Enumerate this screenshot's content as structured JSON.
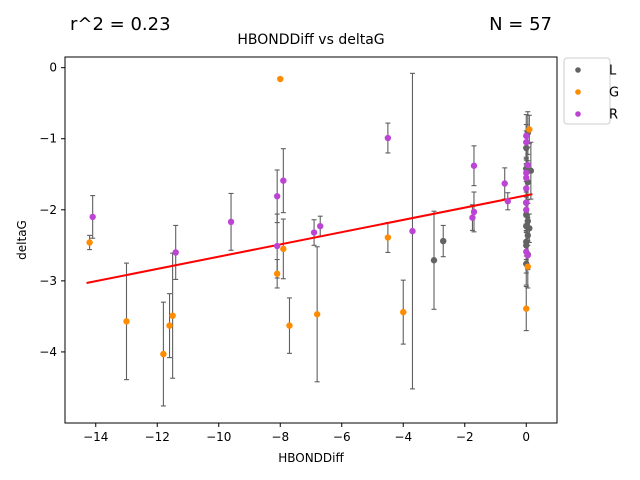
{
  "chart_data": {
    "type": "scatter",
    "title": "HBONDDiff vs deltaG",
    "xlabel": "HBONDDiff",
    "ylabel": "deltaG",
    "stat_left": "r^2 = 0.23",
    "stat_right": "N = 57",
    "xlim": [
      -15,
      1
    ],
    "ylim": [
      -5,
      0.15
    ],
    "xticks": [
      -14,
      -12,
      -10,
      -8,
      -6,
      -4,
      -2,
      0
    ],
    "yticks": [
      -4,
      -3,
      -2,
      -1,
      0
    ],
    "legend_position": "outside-top-right",
    "grid": false,
    "fit_line": {
      "x": [
        -14.3,
        0.2
      ],
      "y": [
        -3.03,
        -1.78
      ],
      "color": "#ff0000"
    },
    "errorbar_color": "#5f5f5f",
    "series": [
      {
        "name": "L",
        "color": "#636363",
        "points": [
          {
            "x": -3.0,
            "y": -2.71,
            "err": 0.69
          },
          {
            "x": -2.7,
            "y": -2.44,
            "err": 0.22
          },
          {
            "x": 0.0,
            "y": -1.13,
            "err": 0.24
          },
          {
            "x": 0.0,
            "y": -1.42,
            "err": 0.3
          },
          {
            "x": 0.05,
            "y": -1.61,
            "err": 0.3
          },
          {
            "x": 0.0,
            "y": -1.9,
            "err": 0.2
          },
          {
            "x": 0.0,
            "y": -2.07,
            "err": 0.25
          },
          {
            "x": 0.05,
            "y": -2.16,
            "err": 0.3
          },
          {
            "x": 0.0,
            "y": -2.23,
            "err": 0.2
          },
          {
            "x": 0.1,
            "y": -2.26,
            "err": 0.2
          },
          {
            "x": 0.05,
            "y": -2.36,
            "err": 0.25
          },
          {
            "x": 0.0,
            "y": -2.45,
            "err": 0.2
          },
          {
            "x": 0.0,
            "y": -2.5,
            "err": 0.2
          },
          {
            "x": 0.05,
            "y": -2.63,
            "err": 0.2
          },
          {
            "x": 0.0,
            "y": -2.76,
            "err": 0.3
          },
          {
            "x": 0.05,
            "y": -0.92,
            "err": 0.3
          },
          {
            "x": 0.15,
            "y": -1.45,
            "err": 0.4
          }
        ]
      },
      {
        "name": "G",
        "color": "#ff8c00",
        "points": [
          {
            "x": -14.2,
            "y": -2.46,
            "err": 0.1
          },
          {
            "x": -13.0,
            "y": -3.57,
            "err": 0.82
          },
          {
            "x": -11.8,
            "y": -4.03,
            "err": 0.73
          },
          {
            "x": -11.6,
            "y": -3.63,
            "err": 0.45
          },
          {
            "x": -11.5,
            "y": -3.49,
            "err": 0.88
          },
          {
            "x": -8.0,
            "y": -0.16,
            "err": 0.02
          },
          {
            "x": -8.1,
            "y": -2.9,
            "err": 0.2
          },
          {
            "x": -7.9,
            "y": -2.55,
            "err": 0.42
          },
          {
            "x": -7.7,
            "y": -3.63,
            "err": 0.39
          },
          {
            "x": -6.8,
            "y": -3.47,
            "err": 0.95
          },
          {
            "x": -4.5,
            "y": -2.39,
            "err": 0.21
          },
          {
            "x": -4.0,
            "y": -3.44,
            "err": 0.45
          },
          {
            "x": 0.0,
            "y": -3.39,
            "err": 0.31
          },
          {
            "x": 0.05,
            "y": -2.8,
            "err": 0.3
          },
          {
            "x": 0.1,
            "y": -0.87,
            "err": 0.2
          }
        ]
      },
      {
        "name": "R",
        "color": "#bb44d4",
        "points": [
          {
            "x": -14.1,
            "y": -2.1,
            "err": 0.3
          },
          {
            "x": -11.4,
            "y": -2.6,
            "err": 0.38
          },
          {
            "x": -9.6,
            "y": -2.17,
            "err": 0.4
          },
          {
            "x": -8.1,
            "y": -1.81,
            "err": 0.37
          },
          {
            "x": -8.1,
            "y": -2.51,
            "err": 0.45
          },
          {
            "x": -7.9,
            "y": -1.59,
            "err": 0.45
          },
          {
            "x": -6.9,
            "y": -2.32,
            "err": 0.18
          },
          {
            "x": -6.7,
            "y": -2.23,
            "err": 0.14
          },
          {
            "x": -4.5,
            "y": -0.99,
            "err": 0.21
          },
          {
            "x": -3.7,
            "y": -2.3,
            "err": 2.22
          },
          {
            "x": -1.7,
            "y": -1.38,
            "err": 0.28
          },
          {
            "x": -1.75,
            "y": -2.11,
            "err": 0.18
          },
          {
            "x": -1.7,
            "y": -2.03,
            "err": 0.28
          },
          {
            "x": -0.7,
            "y": -1.63,
            "err": 0.22
          },
          {
            "x": -0.6,
            "y": -1.88,
            "err": 0.12
          },
          {
            "x": 0.0,
            "y": -0.96,
            "err": 0.3
          },
          {
            "x": 0.0,
            "y": -1.05,
            "err": 0.25
          },
          {
            "x": 0.05,
            "y": -1.37,
            "err": 0.25
          },
          {
            "x": 0.0,
            "y": -1.48,
            "err": 0.2
          },
          {
            "x": 0.0,
            "y": -1.55,
            "err": 0.2
          },
          {
            "x": 0.0,
            "y": -1.7,
            "err": 0.2
          },
          {
            "x": 0.0,
            "y": -1.9,
            "err": 0.3
          },
          {
            "x": 0.0,
            "y": -2.59,
            "err": 0.3
          },
          {
            "x": 0.05,
            "y": -2.64,
            "err": 0.2
          },
          {
            "x": 0.0,
            "y": -2.0,
            "err": 0.2
          }
        ]
      }
    ]
  }
}
